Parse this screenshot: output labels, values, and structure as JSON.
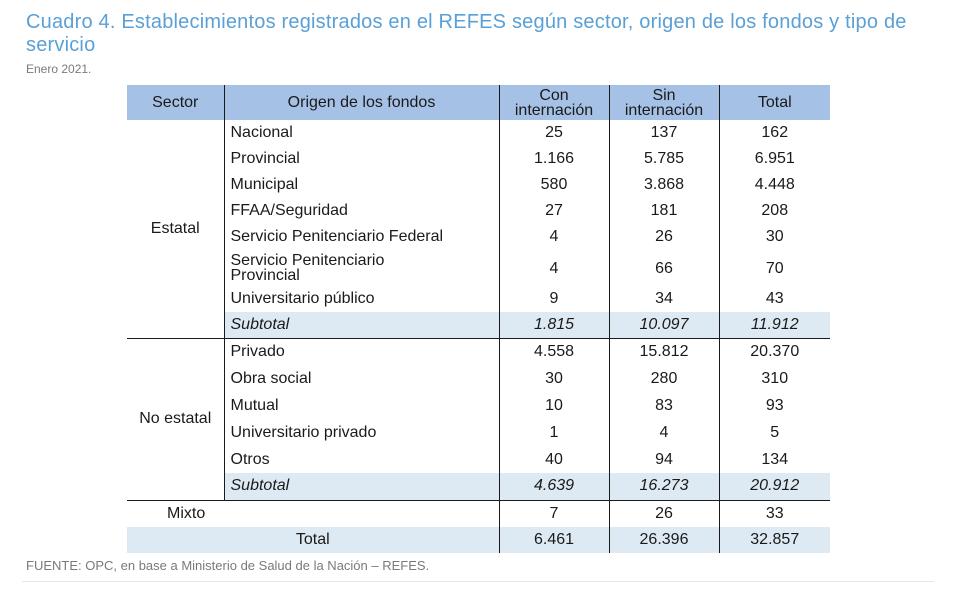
{
  "title": "Cuadro 4. Establecimientos registrados en el REFES según sector, origen de los fondos y tipo de servicio",
  "subtitle": "Enero 2021.",
  "headers": {
    "sector": "Sector",
    "origen": "Origen de los fondos",
    "con_l1": "Con",
    "con_l2": "internación",
    "sin_l1": "Sin",
    "sin_l2": "internación",
    "total": "Total"
  },
  "estatal": {
    "label": "Estatal",
    "rows": [
      {
        "origen": "Nacional",
        "con": "25",
        "sin": "137",
        "total": "162"
      },
      {
        "origen": "Provincial",
        "con": "1.166",
        "sin": "5.785",
        "total": "6.951"
      },
      {
        "origen": "Municipal",
        "con": "580",
        "sin": "3.868",
        "total": "4.448"
      },
      {
        "origen": "FFAA/Seguridad",
        "con": "27",
        "sin": "181",
        "total": "208"
      },
      {
        "origen": "Servicio Penitenciario Federal",
        "con": "4",
        "sin": "26",
        "total": "30"
      },
      {
        "origen_l1": "Servicio Penitenciario",
        "origen_l2": "Provincial",
        "con": "4",
        "sin": "66",
        "total": "70"
      },
      {
        "origen": "Universitario público",
        "con": "9",
        "sin": "34",
        "total": "43"
      }
    ],
    "subtotal": {
      "label": "Subtotal",
      "con": "1.815",
      "sin": "10.097",
      "total": "11.912"
    }
  },
  "no_estatal": {
    "label": "No estatal",
    "rows": [
      {
        "origen": "Privado",
        "con": "4.558",
        "sin": "15.812",
        "total": "20.370"
      },
      {
        "origen": "Obra social",
        "con": "30",
        "sin": "280",
        "total": "310"
      },
      {
        "origen": "Mutual",
        "con": "10",
        "sin": "83",
        "total": "93"
      },
      {
        "origen": "Universitario privado",
        "con": "1",
        "sin": "4",
        "total": "5"
      },
      {
        "origen": "Otros",
        "con": "40",
        "sin": "94",
        "total": "134"
      }
    ],
    "subtotal": {
      "label": "Subtotal",
      "con": "4.639",
      "sin": "16.273",
      "total": "20.912"
    }
  },
  "mixto": {
    "label": "Mixto",
    "con": "7",
    "sin": "26",
    "total": "33"
  },
  "total": {
    "label": "Total",
    "con": "6.461",
    "sin": "26.396",
    "total": "32.857"
  },
  "source": "FUENTE: OPC, en base a Ministerio de Salud de la Nación – REFES."
}
